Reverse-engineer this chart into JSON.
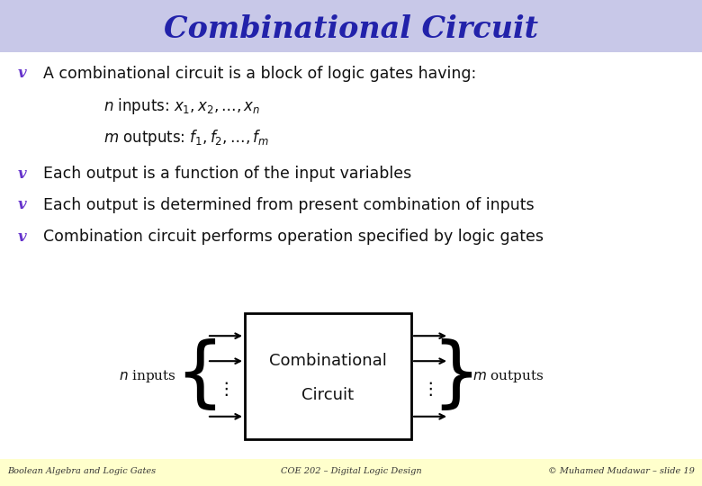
{
  "title": "Combinational Circuit",
  "title_color": "#2222aa",
  "title_bg_color": "#c8c8e8",
  "bg_color": "#ffffff",
  "footer_bg_color": "#ffffcc",
  "bullet_color": "#6633cc",
  "bullet1": "A combinational circuit is a block of logic gates having:",
  "indent1_math": "$n$ inputs: $x_1, x_2, \\ldots, x_n$",
  "indent2_math": "$m$ outputs: $f_1, f_2, \\ldots, f_m$",
  "bullet2": "Each output is a function of the input variables",
  "bullet3": "Each output is determined from present combination of inputs",
  "bullet4": "Combination circuit performs operation specified by logic gates",
  "footer_left": "Boolean Algebra and Logic Gates",
  "footer_center": "COE 202 – Digital Logic Design",
  "footer_right": "© Muhamed Mudawar – slide 19",
  "box_label1": "Combinational",
  "box_label2": "Circuit",
  "n_inputs_label": "$n$ inputs",
  "m_outputs_label": "$m$ outputs"
}
